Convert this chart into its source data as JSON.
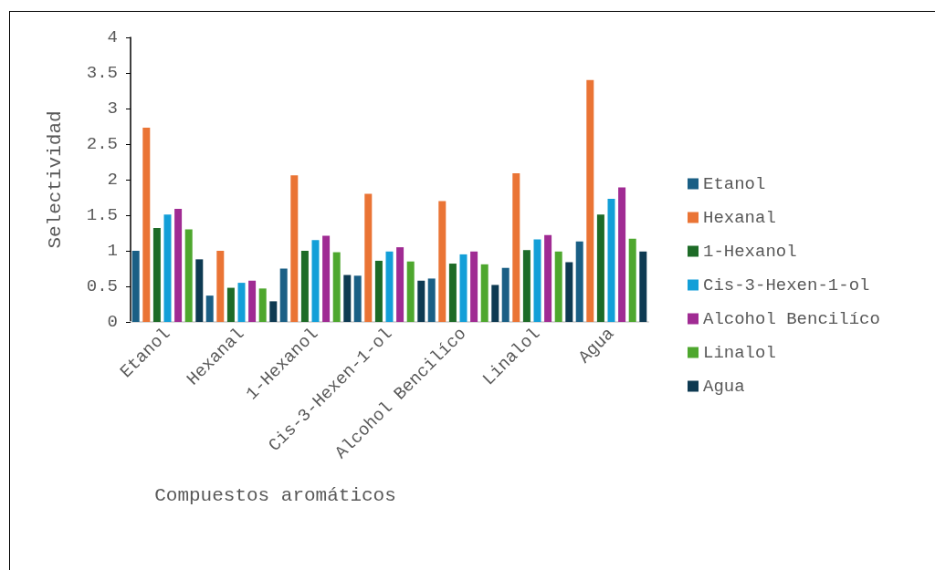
{
  "chart_data": {
    "type": "bar",
    "xlabel": "Compuestos aromáticos",
    "ylabel": "Selectividad",
    "categories": [
      "Etanol",
      "Hexanal",
      "1-Hexanol",
      "Cis-3-Hexen-1-ol",
      "Alcohol Bencilíco",
      "Linalol",
      "Agua"
    ],
    "series": [
      {
        "name": "Etanol",
        "color": "#1a5f85",
        "values": [
          1.0,
          0.37,
          0.75,
          0.65,
          0.61,
          0.76,
          1.13
        ]
      },
      {
        "name": "Hexanal",
        "color": "#ea7435",
        "values": [
          2.73,
          1.0,
          2.06,
          1.8,
          1.7,
          2.09,
          3.4
        ]
      },
      {
        "name": "1-Hexanol",
        "color": "#1d6b27",
        "values": [
          1.32,
          0.48,
          1.0,
          0.86,
          0.82,
          1.01,
          1.51
        ]
      },
      {
        "name": "Cis-3-Hexen-1-ol",
        "color": "#139fd8",
        "values": [
          1.51,
          0.55,
          1.15,
          0.99,
          0.95,
          1.16,
          1.73
        ]
      },
      {
        "name": "Alcohol Bencilíco",
        "color": "#a02b93",
        "values": [
          1.59,
          0.58,
          1.21,
          1.05,
          0.99,
          1.22,
          1.89
        ]
      },
      {
        "name": "Linalol",
        "color": "#4ea72e",
        "values": [
          1.3,
          0.47,
          0.98,
          0.85,
          0.81,
          0.99,
          1.17
        ]
      },
      {
        "name": "Agua",
        "color": "#0e3a52",
        "values": [
          0.88,
          0.29,
          0.66,
          0.58,
          0.52,
          0.84,
          0.99
        ]
      }
    ],
    "ylim": [
      0,
      4
    ],
    "yticks": [
      0,
      0.5,
      1,
      1.5,
      2,
      2.5,
      3,
      3.5,
      4
    ],
    "grid": false,
    "legend": "right"
  }
}
